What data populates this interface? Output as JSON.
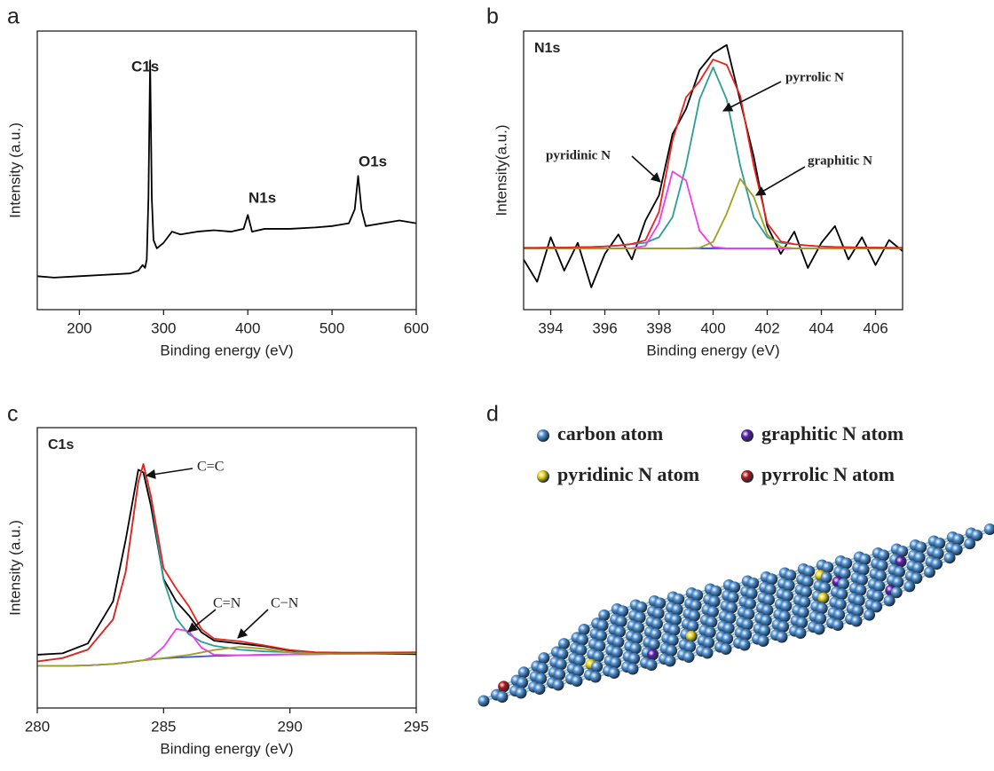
{
  "chart_data": [
    {
      "type": "line",
      "panel_label": "a",
      "xlabel": "Binding energy (eV)",
      "ylabel": "Intensity (a.u.)",
      "x": [
        150,
        170,
        200,
        230,
        260,
        270,
        275,
        278,
        280,
        282,
        284,
        286,
        288,
        292,
        300,
        310,
        320,
        340,
        360,
        380,
        395,
        400,
        405,
        420,
        450,
        480,
        500,
        520,
        527,
        531,
        535,
        540,
        560,
        580,
        600
      ],
      "xlim": [
        150,
        600
      ],
      "xticks": [
        200,
        300,
        400,
        500,
        600
      ],
      "ylim": [
        0,
        100
      ],
      "series": [
        {
          "color": "#000000",
          "values": [
            12,
            11.5,
            12,
            12.5,
            13,
            14,
            16,
            15,
            18,
            40,
            89.5,
            40,
            25,
            22,
            24,
            28,
            27,
            28,
            28.5,
            28,
            29,
            34,
            28,
            29,
            29,
            29.5,
            30,
            31,
            36,
            48,
            36,
            30,
            31,
            32,
            31
          ]
        }
      ],
      "annotations": [
        "C1s",
        "N1s",
        "O1s"
      ]
    },
    {
      "type": "line",
      "panel_label": "b",
      "title": "N1s",
      "xlabel": "Binding energy (eV)",
      "ylabel": "Intensity(a.u.)",
      "x": [
        393,
        393.5,
        394,
        394.5,
        395,
        395.5,
        396,
        396.5,
        397,
        397.5,
        398,
        398.5,
        399,
        399.5,
        400,
        400.5,
        401,
        401.5,
        402,
        402.5,
        403,
        403.5,
        404,
        404.5,
        405,
        405.5,
        406,
        406.5,
        407
      ],
      "xlim": [
        393,
        407
      ],
      "xticks": [
        394,
        396,
        398,
        400,
        402,
        404,
        406
      ],
      "ylim": [
        0,
        100
      ],
      "series": [
        {
          "color": "#000000",
          "values": [
            18,
            10,
            26,
            14,
            24,
            8,
            20,
            27,
            18,
            32,
            41,
            63,
            72,
            86,
            92,
            95,
            75,
            55,
            30,
            20,
            28,
            15,
            24,
            30,
            18,
            26,
            16,
            25,
            21
          ]
        },
        {
          "color": "#2f4fe0",
          "values": [
            22,
            22,
            22,
            22,
            22,
            22,
            22,
            22,
            22,
            22,
            22,
            22,
            22,
            22,
            22,
            22,
            22,
            22,
            22,
            22,
            22,
            22,
            22,
            22,
            22,
            22,
            22,
            22,
            22
          ]
        },
        {
          "color": "#2a9d9a",
          "values": [
            22.2,
            22.2,
            22.3,
            22.3,
            22.4,
            22.5,
            22.7,
            23,
            23.5,
            24,
            26,
            33.2,
            51.8,
            75.5,
            87,
            75.5,
            51.8,
            33.2,
            26,
            24,
            23.5,
            23,
            22.7,
            22.5,
            22.4,
            22.3,
            22.3,
            22.2,
            22.2
          ]
        },
        {
          "color": "#f03bf0",
          "values": [
            22,
            22,
            22,
            22,
            22,
            22,
            22,
            22,
            22.1,
            22.9,
            31.1,
            49.6,
            46.4,
            28.3,
            22.5,
            22,
            22,
            22,
            22,
            22,
            22,
            22,
            22,
            22,
            22,
            22,
            22,
            22,
            22
          ]
        },
        {
          "color": "#a0a020",
          "values": [
            22,
            22,
            22,
            22,
            22,
            22,
            22,
            22,
            22,
            22,
            22,
            22,
            22,
            22.2,
            24.3,
            34.4,
            47,
            40.5,
            27,
            22.5,
            22,
            22,
            22,
            22,
            22,
            22,
            22,
            22,
            22
          ]
        },
        {
          "color": "#e8231f",
          "values": [
            22.2,
            22.2,
            22.3,
            22.3,
            22.4,
            22.5,
            22.7,
            23,
            23.6,
            24.9,
            35.1,
            60.8,
            76.2,
            82,
            89.8,
            87.9,
            76.8,
            51.7,
            31,
            24.5,
            23.5,
            23,
            22.7,
            22.5,
            22.4,
            22.3,
            22.3,
            22.2,
            22.2
          ]
        }
      ],
      "annotations": [
        "pyridinic N",
        "pyrrolic N",
        "graphitic N"
      ]
    },
    {
      "type": "line",
      "panel_label": "c",
      "title": "C1s",
      "xlabel": "Binding energy (eV)",
      "ylabel": "Intensity (a.u.)",
      "x": [
        280,
        281,
        282,
        283,
        283.5,
        284,
        284.2,
        284.5,
        285,
        285.5,
        286,
        286.5,
        287,
        288,
        289,
        290,
        291,
        292,
        293,
        294,
        295
      ],
      "xlim": [
        280,
        295
      ],
      "xticks": [
        280,
        285,
        290,
        295
      ],
      "ylim": [
        0,
        100
      ],
      "series": [
        {
          "color": "#000000",
          "values": [
            19,
            19.5,
            23,
            38,
            60,
            85,
            84,
            72,
            46,
            38,
            33,
            27,
            24,
            23,
            22,
            20.5,
            19.8,
            19.5,
            19.4,
            19.3,
            19.2
          ]
        },
        {
          "color": "#2f4fe0",
          "values": [
            15,
            15,
            15.2,
            15.7,
            16.2,
            16.8,
            17,
            17.3,
            17.7,
            18,
            18.2,
            18.4,
            18.6,
            18.8,
            19,
            19.1,
            19.2,
            19.3,
            19.4,
            19.5,
            19.6
          ]
        },
        {
          "color": "#2a9d9a",
          "values": [
            16.6,
            17.8,
            20.8,
            31.6,
            48.6,
            80.7,
            87,
            75,
            45.6,
            32,
            26.3,
            23.6,
            22.2,
            20.8,
            20.2,
            19.9,
            19.8,
            19.75,
            19.75,
            19.8,
            19.85
          ]
        },
        {
          "color": "#f03bf0",
          "values": [
            15,
            15,
            15.2,
            15.7,
            16.2,
            16.8,
            17,
            17.9,
            21.8,
            28.2,
            27.4,
            21.5,
            19,
            18.8,
            19,
            19.1,
            19.2,
            19.3,
            19.4,
            19.5,
            19.6
          ]
        },
        {
          "color": "#a0a020",
          "values": [
            15,
            15,
            15.2,
            15.7,
            16.2,
            16.8,
            17,
            17.3,
            17.8,
            18.4,
            18.95,
            19.8,
            20.7,
            21.8,
            21.1,
            19.85,
            19.34,
            19.3,
            19.4,
            19.5,
            19.6
          ]
        },
        {
          "color": "#e8231f",
          "values": [
            16.6,
            17.8,
            20.8,
            31.6,
            48.6,
            80.7,
            87,
            75.6,
            49.8,
            42.6,
            36.3,
            28.1,
            24.7,
            23.8,
            22.3,
            20.7,
            19.9,
            19.75,
            19.75,
            19.8,
            19.85
          ]
        }
      ],
      "annotations": [
        "C=C",
        "C=N",
        "C−N"
      ]
    }
  ],
  "diagram": {
    "panel_label": "d",
    "legend": [
      {
        "label": "carbon atom",
        "color": "#4f8fd0"
      },
      {
        "label": "graphitic N atom",
        "color": "#5b1ea8"
      },
      {
        "label": "pyridinic N atom",
        "color": "#e6d21a"
      },
      {
        "label": "pyrrolic N atom",
        "color": "#b01818"
      }
    ]
  }
}
